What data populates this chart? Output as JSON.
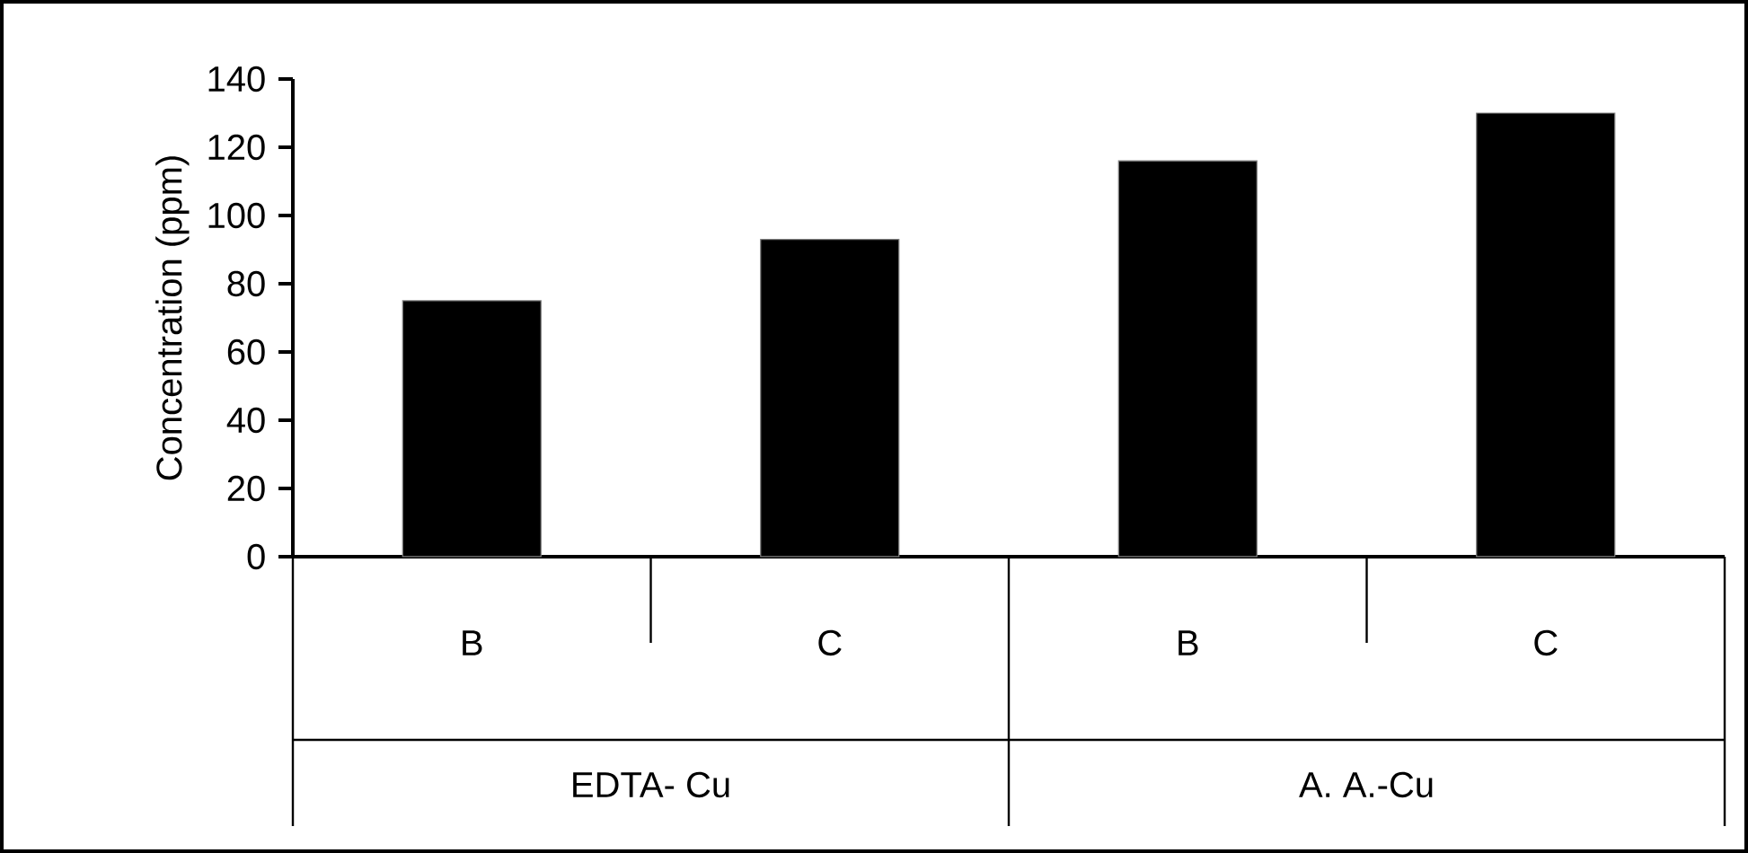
{
  "chart_data": {
    "type": "bar",
    "ylabel": "Concentration (ppm)",
    "categories": [
      "B",
      "C",
      "B",
      "C"
    ],
    "values": [
      75,
      93,
      116,
      130
    ],
    "color": "#000000",
    "ylim": [
      0,
      140
    ],
    "yticks": [
      0,
      20,
      40,
      60,
      80,
      100,
      120,
      140
    ],
    "annotations": [
      "EDTA- Cu",
      "A. A.-Cu"
    ],
    "grid": false
  }
}
